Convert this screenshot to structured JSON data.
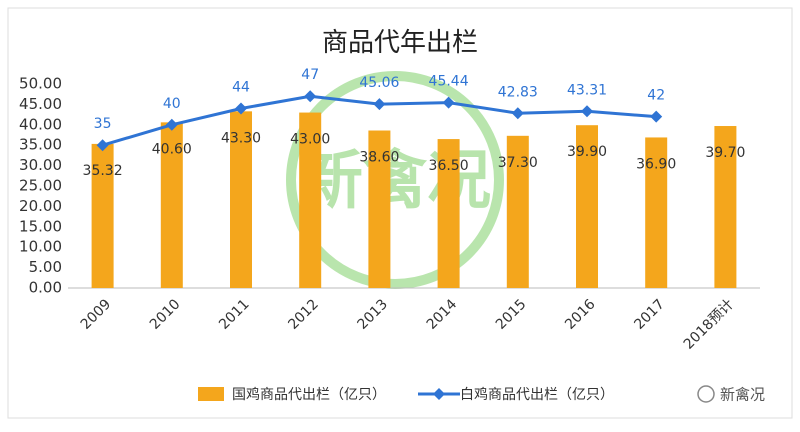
{
  "chart_data": {
    "type": "bar-line",
    "title": "商品代年出栏",
    "watermark": "新禽况",
    "brand": "新禽况",
    "categories": [
      "2009",
      "2010",
      "2011",
      "2012",
      "2013",
      "2014",
      "2015",
      "2016",
      "2017",
      "2018预计"
    ],
    "series": [
      {
        "name": "国鸡商品代出栏（亿只）",
        "type": "bar",
        "color": "#f4a61c",
        "values": [
          35.32,
          40.6,
          43.3,
          43.0,
          38.6,
          36.5,
          37.3,
          39.9,
          36.9,
          39.7
        ],
        "value_labels": [
          "35.32",
          "40.60",
          "43.30",
          "43.00",
          "38.60",
          "36.50",
          "37.30",
          "39.90",
          "36.90",
          "39.70"
        ]
      },
      {
        "name": "白鸡商品代出栏（亿只）",
        "type": "line",
        "color": "#2f74d4",
        "values": [
          35,
          40,
          44,
          47,
          45.06,
          45.44,
          42.83,
          43.31,
          42,
          null
        ]
      }
    ],
    "ylim": [
      0,
      50
    ],
    "yticks": [
      {
        "value": 0,
        "label": "0.00"
      },
      {
        "value": 5,
        "label": "5.00"
      },
      {
        "value": 10,
        "label": "10.00"
      },
      {
        "value": 15,
        "label": "15.00"
      },
      {
        "value": 20,
        "label": "20.00"
      },
      {
        "value": 25,
        "label": "25.00"
      },
      {
        "value": 30,
        "label": "30.00"
      },
      {
        "value": 35,
        "label": "35.00"
      },
      {
        "value": 40,
        "label": "40.00"
      },
      {
        "value": 45,
        "label": "45.00"
      },
      {
        "value": 50,
        "label": "50.00"
      }
    ],
    "grid": false
  }
}
